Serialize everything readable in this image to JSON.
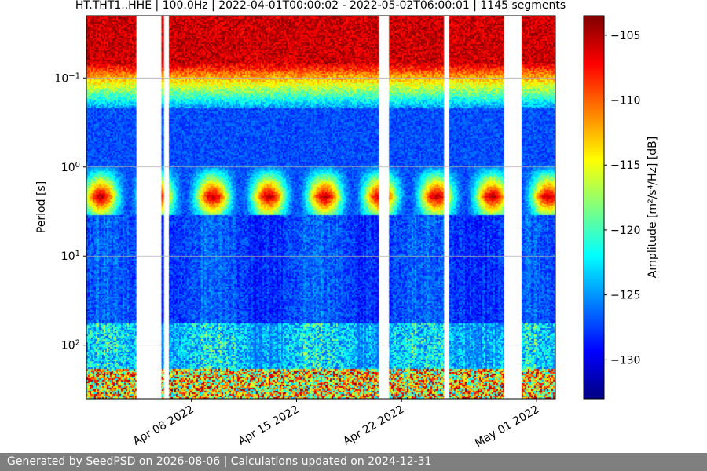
{
  "chart_data": {
    "type": "heatmap",
    "title": "HT.THT1..HHE | 100.0Hz | 2022-04-01T00:00:02 - 2022-05-02T06:00:01 | 1145 segments",
    "ylabel": "Period [s]",
    "y_scale": "log",
    "y_inverted": true,
    "ylim": [
      0.02,
      400
    ],
    "y_ticks": [
      {
        "value": 0.1,
        "base": "10",
        "exp": "−1"
      },
      {
        "value": 1,
        "base": "10",
        "exp": "0"
      },
      {
        "value": 10,
        "base": "10",
        "exp": "1"
      },
      {
        "value": 100,
        "base": "10",
        "exp": "2"
      }
    ],
    "xlim": [
      "2022-04-01T00:00:02",
      "2022-05-02T06:00:01"
    ],
    "x_ticks": [
      {
        "date": "2022-04-08",
        "label": "Apr 08 2022"
      },
      {
        "date": "2022-04-15",
        "label": "Apr 15 2022"
      },
      {
        "date": "2022-04-22",
        "label": "Apr 22 2022"
      },
      {
        "date": "2022-05-01",
        "label": "May 01 2022"
      }
    ],
    "grid": true,
    "colormap": "jet",
    "colorbar": {
      "label": "Amplitude [m²/s⁴/Hz] [dB]",
      "min": -133,
      "max": -103.5,
      "ticks": [
        -105,
        -110,
        -115,
        -120,
        -125,
        -130
      ],
      "tick_labels": [
        "−105",
        "−110",
        "−115",
        "−120",
        "−125",
        "−130"
      ]
    },
    "data_gaps": [
      {
        "start": "2022-04-04T08:00",
        "end": "2022-04-06T00:00"
      },
      {
        "start": "2022-04-06T04:00",
        "end": "2022-04-06T12:00"
      },
      {
        "start": "2022-04-20T12:00",
        "end": "2022-04-21T04:00"
      },
      {
        "start": "2022-04-24T20:00",
        "end": "2022-04-25T04:00"
      },
      {
        "start": "2022-04-28T20:00",
        "end": "2022-04-30T00:00"
      }
    ]
  },
  "footer": {
    "text": "Generated by SeedPSD on 2026-08-06 | Calculations updated on 2024-12-31"
  }
}
